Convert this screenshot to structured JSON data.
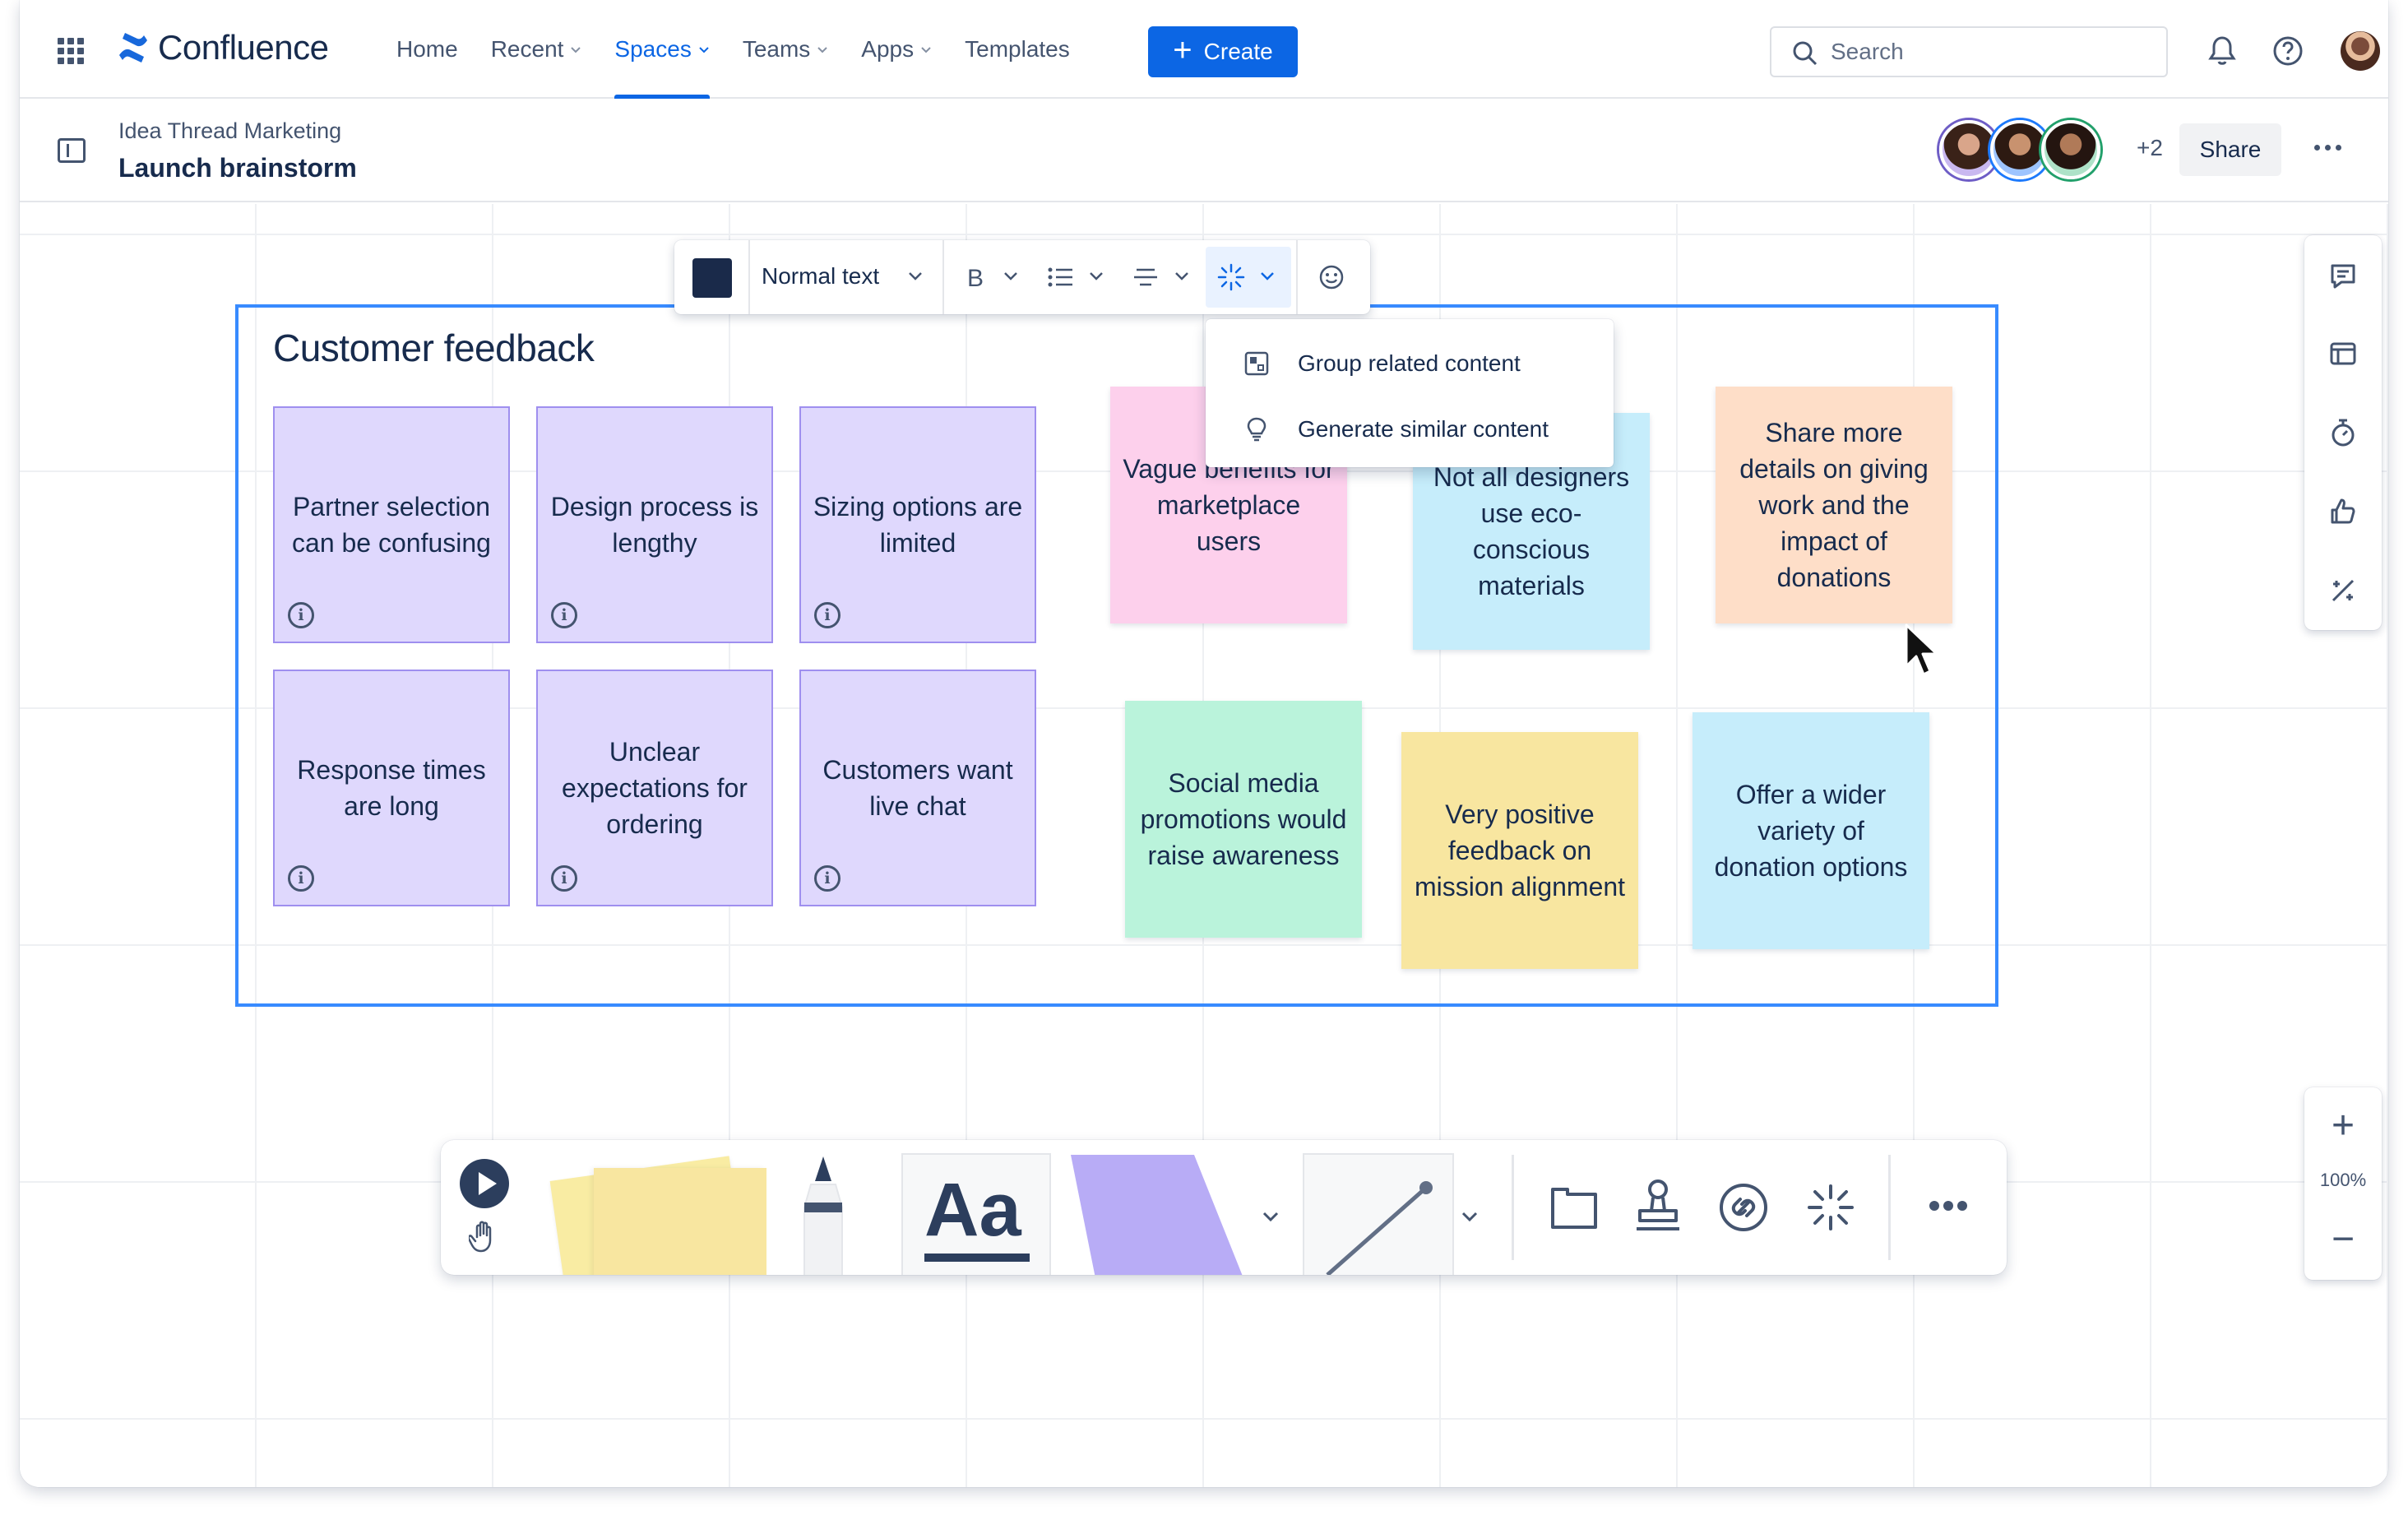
{
  "nav": {
    "app_name": "Confluence",
    "items": [
      {
        "label": "Home",
        "has_dropdown": false,
        "active": false
      },
      {
        "label": "Recent",
        "has_dropdown": true,
        "active": false
      },
      {
        "label": "Spaces",
        "has_dropdown": true,
        "active": true
      },
      {
        "label": "Teams",
        "has_dropdown": true,
        "active": false
      },
      {
        "label": "Apps",
        "has_dropdown": true,
        "active": false
      },
      {
        "label": "Templates",
        "has_dropdown": false,
        "active": false
      }
    ],
    "create_label": "Create",
    "search_placeholder": "Search",
    "icons": [
      "app-switcher-icon",
      "bell-icon",
      "help-icon",
      "profile-avatar"
    ]
  },
  "page": {
    "breadcrumb": "Idea Thread Marketing",
    "title": "Launch brainstorm",
    "collaborator_overflow": "+2",
    "share_label": "Share"
  },
  "toolbar": {
    "text_style": "Normal text",
    "selected_color": "#1a2a4a",
    "tools": [
      "color-swatch",
      "bold-icon",
      "list-icon",
      "strikethrough-icon",
      "ai-sparkle-icon",
      "emoji-icon"
    ],
    "ai_menu": [
      {
        "label": "Group related content",
        "icon": "group-icon"
      },
      {
        "label": "Generate similar content",
        "icon": "lightbulb-icon"
      }
    ]
  },
  "board": {
    "section_title": "Customer feedback",
    "grouped_notes": [
      "Partner selection can be confusing",
      "Design process is lengthy",
      "Sizing options are limited",
      "Response times are long",
      "Unclear expectations for ordering",
      "Customers want live chat"
    ],
    "loose_notes": [
      {
        "text": "Vague benefits for marketplace users",
        "color": "pink"
      },
      {
        "text": "Not all designers use eco-conscious materials",
        "color": "cyan"
      },
      {
        "text": "Share more details on giving work and the impact of donations",
        "color": "peach"
      },
      {
        "text": "Social media promotions would raise awareness",
        "color": "green"
      },
      {
        "text": "Very positive feedback on mission alignment",
        "color": "yellow"
      },
      {
        "text": "Offer a wider variety of donation options",
        "color": "cyan"
      }
    ]
  },
  "right_rail": {
    "icons": [
      "comment-icon",
      "panel-icon",
      "timer-icon",
      "thumbs-up-icon",
      "magic-wand-icon"
    ],
    "zoom_level": "100%"
  },
  "bottom_tools": [
    "select-tool",
    "hand-tool",
    "sticky-note-tool",
    "marker-tool",
    "text-tool",
    "shape-tool",
    "line-tool",
    "frame-tool",
    "stamp-tool",
    "link-tool",
    "ai-tool",
    "more-tools"
  ],
  "colors": {
    "brand_blue": "#0c66e4",
    "section_border": "#388bff",
    "note_purple": "#dfd8fd",
    "note_pink": "#fdd0ec",
    "note_cyan": "#c6edfb",
    "note_peach": "#fedec8",
    "note_green": "#baf3db",
    "note_yellow": "#f8e6a0"
  }
}
